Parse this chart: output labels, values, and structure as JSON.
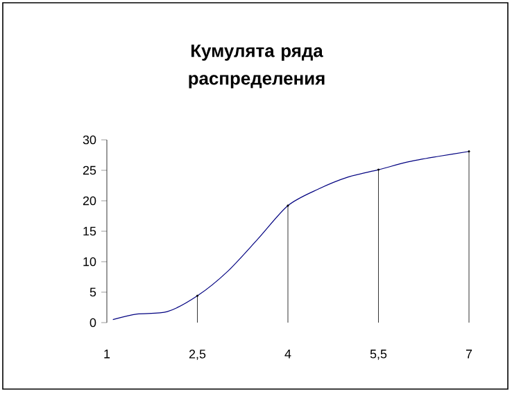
{
  "chart_data": {
    "type": "line",
    "title": "Кумулята ряда распределения",
    "x": [
      1.1,
      1.5,
      2,
      2.5,
      3,
      3.5,
      4,
      4.5,
      5,
      5.5,
      6,
      6.5,
      7
    ],
    "xlim": [
      1,
      7
    ],
    "xticks": [
      1,
      {
        "value": 2.5,
        "label": "2,5"
      },
      4,
      {
        "value": 5.5,
        "label": "5,5"
      },
      7
    ],
    "ylim": [
      0,
      30
    ],
    "yticks": [
      0,
      5,
      10,
      15,
      20,
      25,
      30
    ],
    "marker": "none",
    "series": [
      {
        "color": "#000080",
        "values": [
          0.5,
          1.4,
          1.8,
          4.4,
          8.4,
          13.7,
          19.2,
          21.9,
          23.9,
          25.1,
          26.4,
          27.3,
          28.1
        ]
      },
      {
        "type": "lollipop",
        "color": "#000000",
        "x": [
          2.5,
          4,
          5.5,
          7
        ],
        "values": [
          4.4,
          19.2,
          25.1,
          28.1
        ]
      }
    ]
  }
}
